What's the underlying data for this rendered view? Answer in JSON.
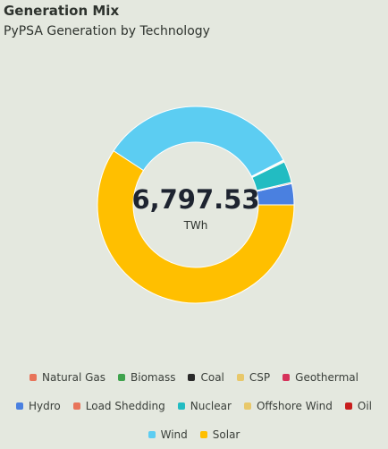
{
  "header": {
    "title": "Generation Mix",
    "subtitle": "PyPSA Generation by Technology"
  },
  "center": {
    "value": "6,797.53",
    "unit": "TWh"
  },
  "chart_data": {
    "type": "pie",
    "total": 6797.53,
    "unit": "TWh",
    "series": [
      {
        "name": "Natural Gas",
        "value": 0,
        "color": "#e8745a"
      },
      {
        "name": "Biomass",
        "value": 0,
        "color": "#3fa34d"
      },
      {
        "name": "Coal",
        "value": 0,
        "color": "#2a2a2a"
      },
      {
        "name": "CSP",
        "value": 0,
        "color": "#e8c86a"
      },
      {
        "name": "Geothermal",
        "value": 0,
        "color": "#d6325a"
      },
      {
        "name": "Hydro",
        "value": 235,
        "color": "#4a80e0"
      },
      {
        "name": "Load Shedding",
        "value": 14,
        "color": "#e8745a"
      },
      {
        "name": "Nuclear",
        "value": 240,
        "color": "#22bcc2"
      },
      {
        "name": "Offshore Wind",
        "value": 12,
        "color": "#e8c86a"
      },
      {
        "name": "Oil",
        "value": 10,
        "color": "#c81e1e"
      },
      {
        "name": "Wind",
        "value": 2260,
        "color": "#5ccdf2"
      },
      {
        "name": "Solar",
        "value": 4027,
        "color": "#ffbf00"
      }
    ]
  }
}
